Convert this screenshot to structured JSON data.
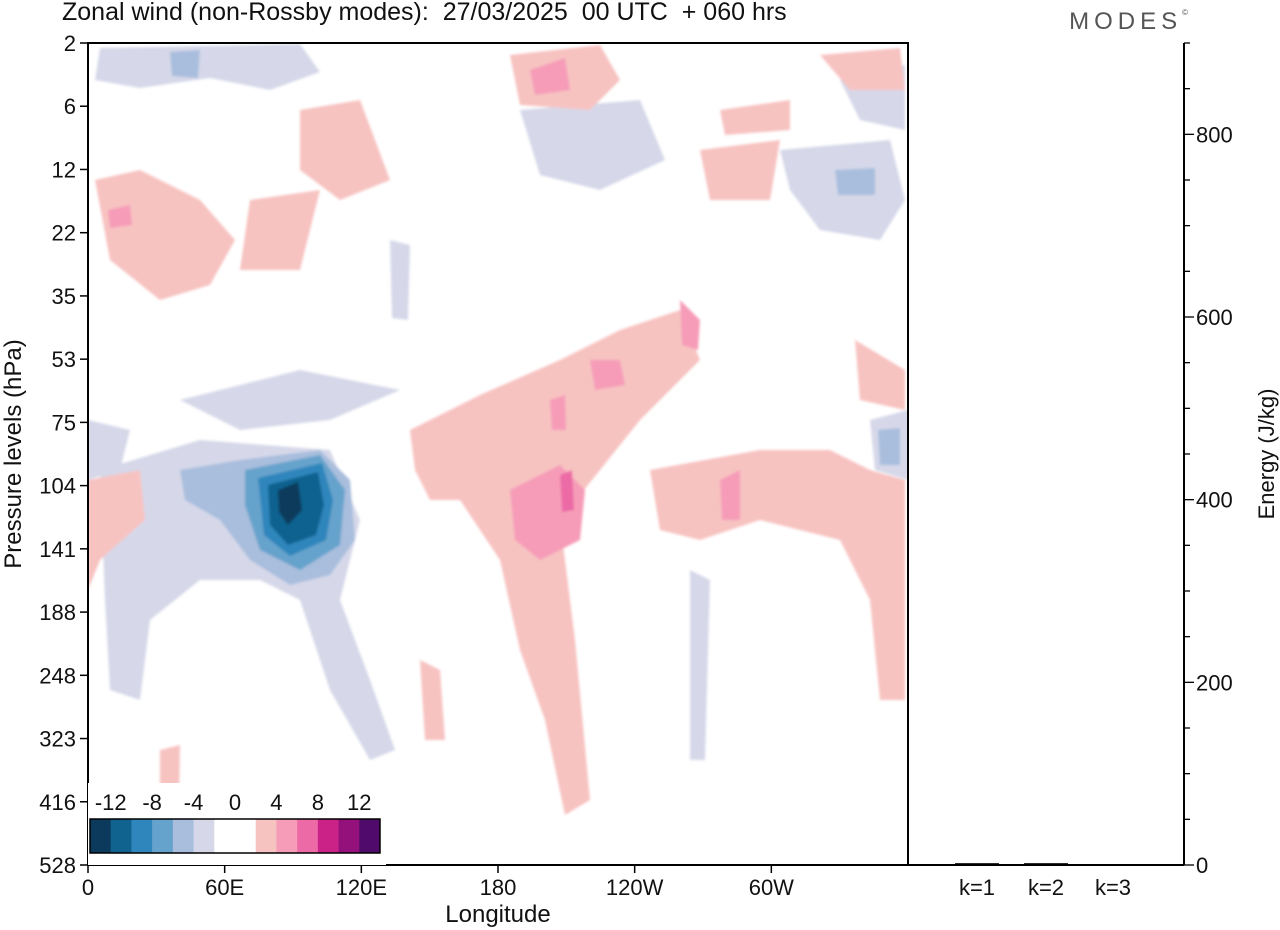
{
  "chart_data": [
    {
      "type": "heatmap",
      "title": "Zonal wind (non-Rossby modes):  27/03/2025  00 UTC  + 060 hrs",
      "xlabel": "Longitude",
      "ylabel": "Pressure levels (hPa)",
      "x_ticks": [
        "0",
        "60E",
        "120E",
        "180",
        "120W",
        "60W"
      ],
      "y_ticks": [
        "2",
        "6",
        "12",
        "22",
        "35",
        "53",
        "75",
        "104",
        "141",
        "188",
        "248",
        "323",
        "416",
        "528"
      ],
      "colorbar": {
        "tick_labels": [
          "-12",
          "-8",
          "-4",
          "0",
          "4",
          "8",
          "12"
        ],
        "colors": [
          "#0b3a5c",
          "#10628f",
          "#2f86bc",
          "#66a3cc",
          "#a9bedd",
          "#d6d8e9",
          "#ffffff",
          "#ffffff",
          "#f7c3c1",
          "#f69cb8",
          "#ec6aa6",
          "#cb2287",
          "#94107b",
          "#4f0a6b"
        ]
      },
      "features": [
        {
          "lon": 85,
          "level": "104-141",
          "value": -13
        },
        {
          "lon": 210,
          "level": "104-141",
          "value": 8
        },
        {
          "lon": 200,
          "level": "6",
          "value": 6
        },
        {
          "lon": 250,
          "level": "35-53",
          "value": 6
        }
      ]
    },
    {
      "type": "bar",
      "categories": [
        "k=1",
        "k=2",
        "k=3"
      ],
      "values": [
        2,
        2,
        1
      ],
      "ylabel": "Energy (J/kg)",
      "ylim": [
        0,
        900
      ],
      "y_ticks": [
        0,
        200,
        400,
        600,
        800
      ]
    }
  ],
  "logo": "MODES",
  "logo_mark": "©"
}
